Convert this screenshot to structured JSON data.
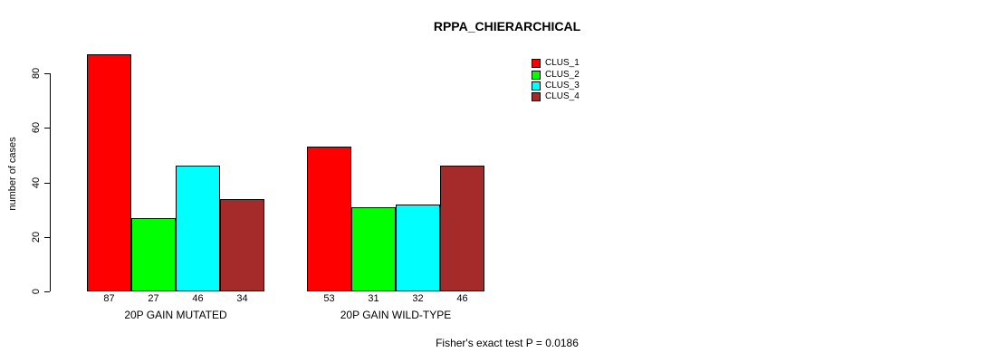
{
  "title": "RPPA_CHIERARCHICAL",
  "footnote": "Fisher's exact test P = 0.0186",
  "chart_data": {
    "type": "bar",
    "title": "RPPA_CHIERARCHICAL",
    "xlabel": "",
    "ylabel": "number of cases",
    "ylim": [
      0,
      87
    ],
    "yticks": [
      0,
      20,
      40,
      60,
      80
    ],
    "grid": false,
    "legend_position": "top-right",
    "groups": [
      "20P GAIN MUTATED",
      "20P GAIN WILD-TYPE"
    ],
    "series": [
      {
        "name": "CLUS_1",
        "color": "#FF0000",
        "values": [
          87,
          53
        ]
      },
      {
        "name": "CLUS_2",
        "color": "#00FF00",
        "values": [
          27,
          31
        ]
      },
      {
        "name": "CLUS_3",
        "color": "#00FFFF",
        "values": [
          46,
          32
        ]
      },
      {
        "name": "CLUS_4",
        "color": "#A52A2A",
        "values": [
          34,
          46
        ]
      }
    ],
    "bar_labels": [
      [
        "87",
        "27",
        "46",
        "34"
      ],
      [
        "53",
        "31",
        "32",
        "46"
      ]
    ],
    "annotation": "Fisher's exact test P = 0.0186"
  }
}
